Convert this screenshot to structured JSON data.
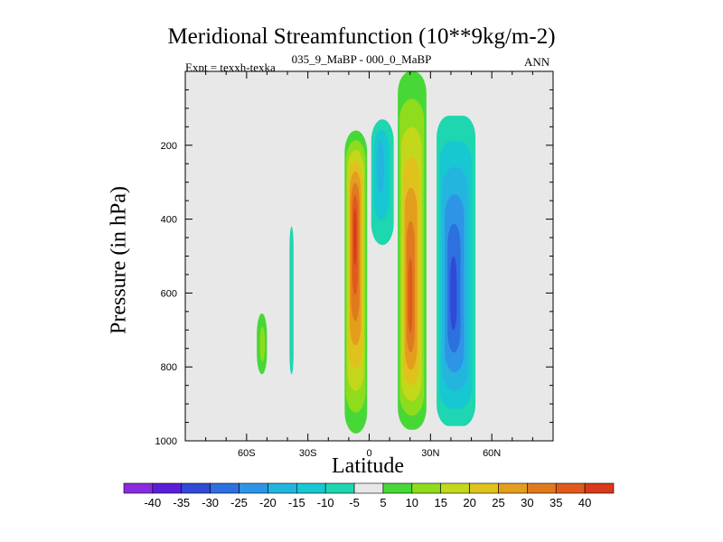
{
  "chart_data": {
    "type": "contour",
    "title": "Meridional Streamfunction (10**9kg/m-2)",
    "subtitle_left": "Expt = texxh-texka",
    "subtitle_center": "035_9_MaBP - 000_0_MaBP",
    "subtitle_right": "ANN",
    "xlabel": "Latitude",
    "ylabel": "Pressure (in hPa)",
    "xlim": [
      -90,
      90
    ],
    "ylim": [
      1000,
      0
    ],
    "x_ticks": [
      {
        "value": -60,
        "label": "60S"
      },
      {
        "value": -30,
        "label": "30S"
      },
      {
        "value": 0,
        "label": "0"
      },
      {
        "value": 30,
        "label": "30N"
      },
      {
        "value": 60,
        "label": "60N"
      }
    ],
    "y_ticks": [
      {
        "value": 200,
        "label": "200"
      },
      {
        "value": 400,
        "label": "400"
      },
      {
        "value": 600,
        "label": "600"
      },
      {
        "value": 800,
        "label": "800"
      },
      {
        "value": 1000,
        "label": "1000"
      }
    ],
    "colorbar": {
      "levels": [
        "-40",
        "-35",
        "-30",
        "-25",
        "-20",
        "-15",
        "-10",
        "-5",
        "5",
        "10",
        "15",
        "20",
        "25",
        "30",
        "35",
        "40"
      ],
      "colors": [
        "#8a2be2",
        "#5a1ed8",
        "#2f4ad6",
        "#2d70e0",
        "#2e95e6",
        "#24b5de",
        "#17c8d2",
        "#1ed6b0",
        "#e8e8e8",
        "#47d837",
        "#8fdc1c",
        "#c3d81a",
        "#e0c21c",
        "#e39e1e",
        "#e07a1e",
        "#df5a1c",
        "#d83a1a"
      ]
    },
    "features": [
      {
        "name": "southern hemisphere positive cell",
        "kind": "positive",
        "center_lat": -7,
        "center_p": 420,
        "lat_range": [
          -12,
          -1
        ],
        "p_range": [
          160,
          980
        ],
        "peak": 40
      },
      {
        "name": "equatorial negative band",
        "kind": "negative",
        "center_lat": 5,
        "center_p": 230,
        "lat_range": [
          1,
          12
        ],
        "p_range": [
          130,
          470
        ],
        "peak": -15
      },
      {
        "name": "northern positive cell",
        "kind": "positive",
        "center_lat": 20,
        "center_p": 640,
        "lat_range": [
          14,
          28
        ],
        "p_range": [
          0,
          970
        ],
        "peak": 35
      },
      {
        "name": "northern negative cell",
        "kind": "negative",
        "center_lat": 41,
        "center_p": 620,
        "lat_range": [
          33,
          52
        ],
        "p_range": [
          120,
          960
        ],
        "peak": -30
      },
      {
        "name": "weak positive patch",
        "kind": "positive",
        "center_lat": -52,
        "center_p": 740,
        "lat_range": [
          -55,
          -50
        ],
        "p_range": [
          655,
          820
        ],
        "peak": 10
      },
      {
        "name": "weak negative strip",
        "kind": "negative",
        "center_lat": -38,
        "center_p": 610,
        "lat_range": [
          -39,
          -37
        ],
        "p_range": [
          420,
          820
        ],
        "peak": -5
      }
    ]
  }
}
